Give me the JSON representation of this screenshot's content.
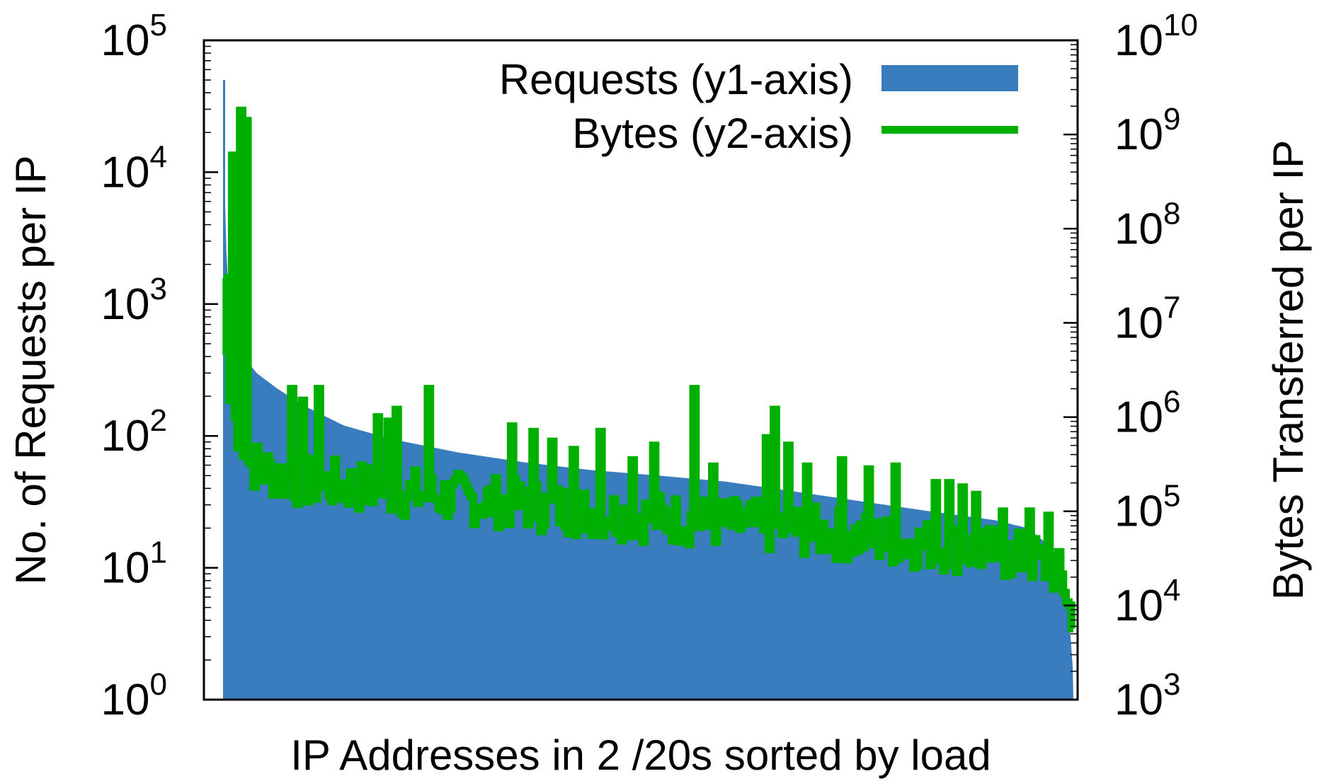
{
  "chart_data": {
    "type": "bar",
    "xlabel": "IP Addresses in 2 /20s sorted by load",
    "ylabel": "No. of Requests per IP",
    "y2label": "Bytes Transferred per IP",
    "y_scale": "log",
    "y2_scale": "log",
    "ylim": [
      1,
      100000
    ],
    "y2lim": [
      1000,
      10000000000
    ],
    "ytick_exponents": [
      "0",
      "1",
      "2",
      "3",
      "4",
      "5"
    ],
    "y2tick_exponents": [
      "3",
      "4",
      "5",
      "6",
      "7",
      "8",
      "9",
      "10"
    ],
    "ytick_base": "10",
    "xticks": "none",
    "grid": false,
    "legend_position": "top-right",
    "series": [
      {
        "name": "Requests (y1-axis)",
        "axis": "y1",
        "style": "bars",
        "color": "#3a7dbf",
        "description_points_rank_value": [
          [
            1,
            50000
          ],
          [
            2,
            15000
          ],
          [
            3,
            6000
          ],
          [
            5,
            2500
          ],
          [
            8,
            1300
          ],
          [
            12,
            800
          ],
          [
            20,
            500
          ],
          [
            30,
            400
          ],
          [
            50,
            300
          ],
          [
            80,
            230
          ],
          [
            120,
            170
          ],
          [
            180,
            120
          ],
          [
            250,
            95
          ],
          [
            350,
            75
          ],
          [
            450,
            63
          ],
          [
            550,
            55
          ],
          [
            650,
            50
          ],
          [
            750,
            45
          ],
          [
            850,
            38
          ],
          [
            950,
            32
          ],
          [
            1050,
            27
          ],
          [
            1150,
            23
          ],
          [
            1200,
            20
          ],
          [
            1230,
            15
          ],
          [
            1245,
            12
          ],
          [
            1255,
            8
          ],
          [
            1262,
            4
          ],
          [
            1268,
            1.5
          ]
        ]
      },
      {
        "name": "Bytes (y2-axis)",
        "axis": "y2",
        "style": "line",
        "color": "#00b000",
        "spikes_rank_value": [
          [
            1,
            30000000
          ],
          [
            4,
            5000000
          ],
          [
            14,
            600000000
          ],
          [
            24,
            1800000000
          ],
          [
            34,
            1400000000
          ],
          [
            100,
            2000000
          ],
          [
            118,
            1500000
          ],
          [
            140,
            2000000
          ],
          [
            230,
            1000000
          ],
          [
            245,
            900000
          ],
          [
            258,
            1200000
          ],
          [
            305,
            2000000
          ],
          [
            430,
            800000
          ],
          [
            460,
            700000
          ],
          [
            490,
            550000
          ],
          [
            520,
            450000
          ],
          [
            560,
            700000
          ],
          [
            610,
            350000
          ],
          [
            640,
            500000
          ],
          [
            700,
            2000000
          ],
          [
            730,
            300000
          ],
          [
            810,
            600000
          ],
          [
            820,
            1200000
          ],
          [
            840,
            500000
          ],
          [
            870,
            300000
          ],
          [
            920,
            350000
          ],
          [
            960,
            280000
          ],
          [
            1000,
            300000
          ],
          [
            1060,
            200000
          ],
          [
            1080,
            200000
          ],
          [
            1100,
            180000
          ],
          [
            1120,
            150000
          ],
          [
            1160,
            100000
          ],
          [
            1200,
            100000
          ],
          [
            1230,
            90000
          ]
        ],
        "baseline_rank_value": [
          [
            2,
            5000000
          ],
          [
            10,
            1200000
          ],
          [
            40,
            300000
          ],
          [
            100,
            200000
          ],
          [
            200,
            170000
          ],
          [
            300,
            140000
          ],
          [
            400,
            120000
          ],
          [
            500,
            100000
          ],
          [
            600,
            85000
          ],
          [
            700,
            75000
          ],
          [
            800,
            65000
          ],
          [
            900,
            55000
          ],
          [
            1000,
            45000
          ],
          [
            1100,
            38000
          ],
          [
            1200,
            30000
          ],
          [
            1240,
            22000
          ],
          [
            1255,
            15000
          ],
          [
            1262,
            8000
          ],
          [
            1268,
            3000
          ]
        ]
      }
    ]
  }
}
